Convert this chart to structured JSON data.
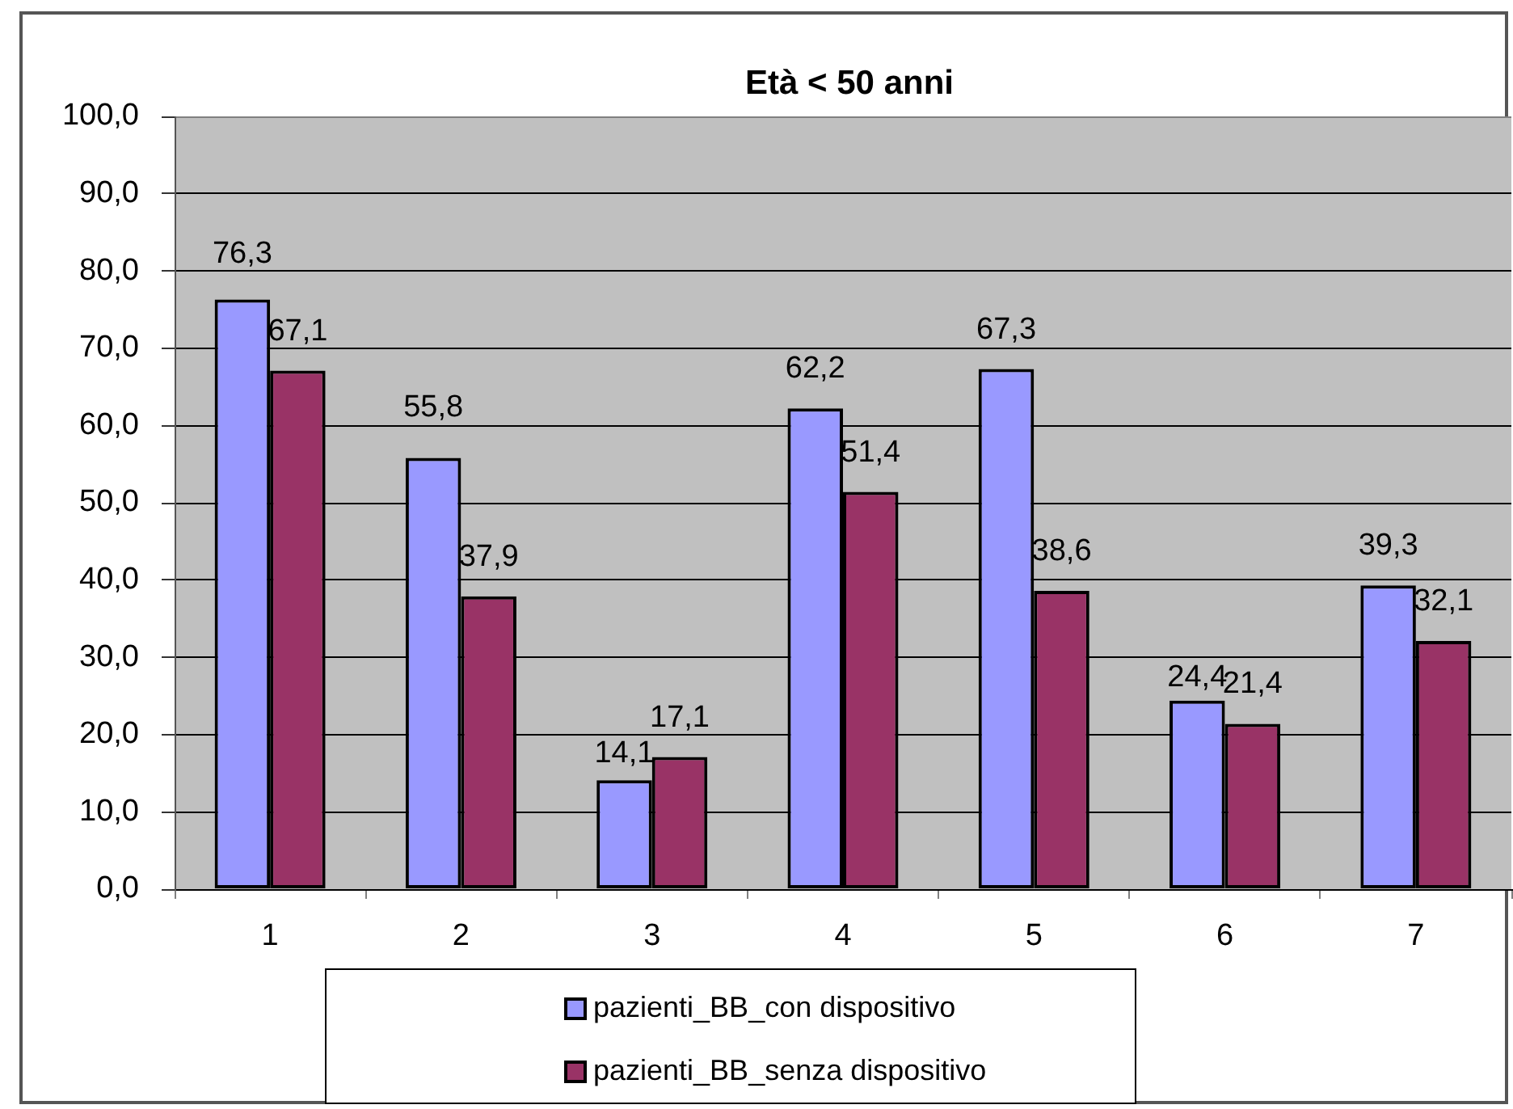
{
  "chart_data": {
    "type": "bar",
    "title": "Età < 50 anni",
    "categories": [
      "1",
      "2",
      "3",
      "4",
      "5",
      "6",
      "7"
    ],
    "series": [
      {
        "name": "pazienti_BB_con dispositivo",
        "color": "#9999ff",
        "values": [
          76.3,
          55.8,
          14.1,
          62.2,
          67.3,
          24.4,
          39.3
        ],
        "value_labels": [
          "76,3",
          "55,8",
          "14,1",
          "62,2",
          "67,3",
          "24,4",
          "39,3"
        ]
      },
      {
        "name": "pazienti_BB_senza dispositivo",
        "color": "#993366",
        "values": [
          67.1,
          37.9,
          17.1,
          51.4,
          38.6,
          21.4,
          32.1
        ],
        "value_labels": [
          "67,1",
          "37,9",
          "17,1",
          "51,4",
          "38,6",
          "21,4",
          "32,1"
        ]
      }
    ],
    "ylim": [
      0,
      100
    ],
    "yticks": [
      {
        "value": 0,
        "label": "0,0"
      },
      {
        "value": 10,
        "label": "10,0"
      },
      {
        "value": 20,
        "label": "20,0"
      },
      {
        "value": 30,
        "label": "30,0"
      },
      {
        "value": 40,
        "label": "40,0"
      },
      {
        "value": 50,
        "label": "50,0"
      },
      {
        "value": 60,
        "label": "60,0"
      },
      {
        "value": 70,
        "label": "70,0"
      },
      {
        "value": 80,
        "label": "80,0"
      },
      {
        "value": 90,
        "label": "90,0"
      },
      {
        "value": 100,
        "label": "100,0"
      }
    ],
    "grid": "y",
    "legend": "bottom"
  }
}
